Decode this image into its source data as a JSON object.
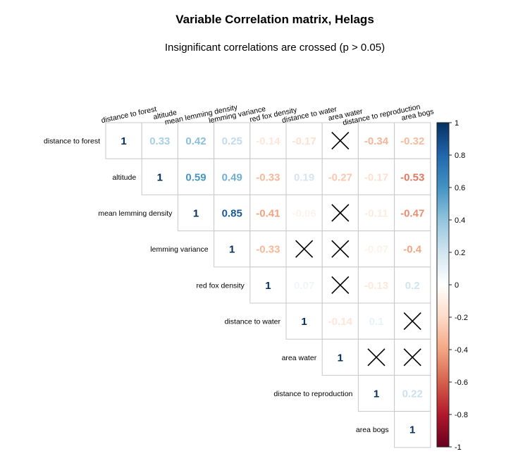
{
  "chart_data": {
    "type": "heatmap",
    "title": "Variable Correlation matrix, Helags",
    "subtitle": "Insignificant correlations are crossed (p > 0.05)",
    "variables": [
      "distance to forest",
      "altitude",
      "mean lemming density",
      "lemming variance",
      "red fox density",
      "distance to water",
      "area water",
      "distance to reproduction",
      "area bogs"
    ],
    "matrix": [
      [
        1,
        0.33,
        0.42,
        0.25,
        -0.14,
        -0.17,
        null,
        -0.34,
        -0.32
      ],
      [
        null,
        1,
        0.59,
        0.49,
        -0.33,
        0.19,
        -0.27,
        -0.17,
        -0.53
      ],
      [
        null,
        null,
        1,
        0.85,
        -0.41,
        -0.06,
        null,
        -0.11,
        -0.47
      ],
      [
        null,
        null,
        null,
        1,
        -0.33,
        null,
        null,
        -0.07,
        -0.4
      ],
      [
        null,
        null,
        null,
        null,
        1,
        0.07,
        null,
        -0.13,
        0.2
      ],
      [
        null,
        null,
        null,
        null,
        null,
        1,
        -0.14,
        0.1,
        null
      ],
      [
        null,
        null,
        null,
        null,
        null,
        null,
        1,
        null,
        null
      ],
      [
        null,
        null,
        null,
        null,
        null,
        null,
        null,
        1,
        0.22
      ],
      [
        null,
        null,
        null,
        null,
        null,
        null,
        null,
        null,
        1
      ]
    ],
    "crossed": [
      [
        0,
        6
      ],
      [
        2,
        6
      ],
      [
        3,
        5
      ],
      [
        3,
        6
      ],
      [
        4,
        6
      ],
      [
        5,
        8
      ],
      [
        6,
        7
      ],
      [
        6,
        8
      ]
    ],
    "triangle": "upper",
    "colorbar": {
      "range": [
        -1,
        1
      ],
      "ticks": [
        "1",
        "0.8",
        "0.6",
        "0.4",
        "0.2",
        "0",
        "-0.2",
        "-0.4",
        "-0.6",
        "-0.8",
        "-1"
      ],
      "colors": {
        "negative": "#67001F",
        "zero": "#FFFFFF",
        "positive": "#053061"
      }
    }
  }
}
